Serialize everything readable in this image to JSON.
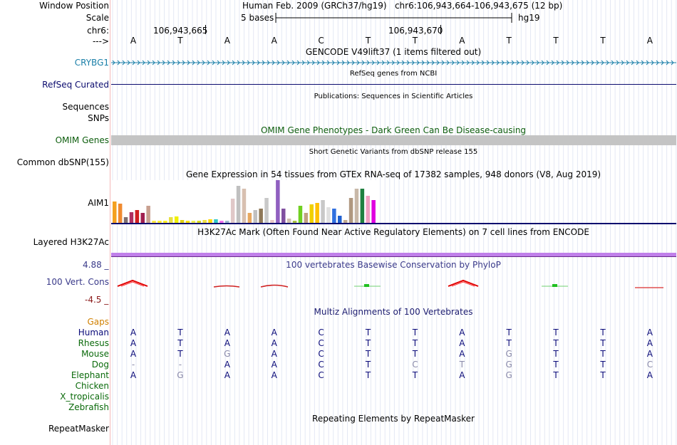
{
  "colors": {
    "gencode": "#1a7fa8",
    "refseq": "#0b0b6e",
    "omim": "#0e5e0e",
    "omim_bar": "#c4c4c4",
    "h3k27ac_bar": "#c080ea",
    "phylop_label": "#3a3a8a",
    "phylop_min": "#8b1a1a",
    "gaps": "#d08000",
    "multiz_label": "#1c1c70",
    "human": "#0b0b7a",
    "other_species": "#0b6a0b",
    "base_match": "#0b0b7a",
    "base_mismatch": "#8a8aaa"
  },
  "header": {
    "window_position_label": "Window Position",
    "window_position_value": "Human Feb. 2009 (GRCh37/hg19)   chr6:106,943,664-106,943,675 (12 bp)",
    "scale_label": "Scale",
    "scale_bases": "5 bases",
    "scale_assembly": "hg19",
    "chrom_label": "chr6:",
    "coord_1": "106,943,665",
    "coord_2": "106,943,670",
    "strand_label": "--->",
    "bases": [
      "A",
      "T",
      "A",
      "A",
      "C",
      "T",
      "T",
      "A",
      "T",
      "T",
      "T",
      "A"
    ]
  },
  "tracks": {
    "gencode": {
      "title": "GENCODE V49lift37 (1 items filtered out)",
      "label": "CRYBG1"
    },
    "refseq": {
      "title": "RefSeq genes from NCBI",
      "label": "RefSeq Curated"
    },
    "publications": {
      "title": "Publications: Sequences in Scientific Articles",
      "label": "Sequences"
    },
    "snps": {
      "label": "SNPs"
    },
    "omim": {
      "title": "OMIM Gene Phenotypes - Dark Green Can Be Disease-causing",
      "label": "OMIM Genes"
    },
    "dbsnp": {
      "title": "Short Genetic Variants from dbSNP release 155",
      "label": "Common dbSNP(155)"
    },
    "gtex": {
      "title": "Gene Expression in 54 tissues from GTEx RNA-seq of 17382 samples, 948 donors (V8, Aug 2019)",
      "label": "AIM1"
    },
    "h3k27ac": {
      "title": "H3K27Ac Mark (Often Found Near Active Regulatory Elements) on 7 cell lines from ENCODE",
      "label": "Layered H3K27Ac"
    },
    "phylop": {
      "title": "100 vertebrates Basewise Conservation by PhyloP",
      "label": "100 Vert. Cons",
      "max": "4.88 _",
      "min": "-4.5 _"
    },
    "multiz": {
      "title": "Multiz Alignments of 100 Vertebrates",
      "gaps_label": "Gaps",
      "species": [
        {
          "name": "Human",
          "bases": [
            "A",
            "T",
            "A",
            "A",
            "C",
            "T",
            "T",
            "A",
            "T",
            "T",
            "T",
            "A"
          ]
        },
        {
          "name": "Rhesus",
          "bases": [
            "A",
            "T",
            "A",
            "A",
            "C",
            "T",
            "T",
            "A",
            "T",
            "T",
            "T",
            "A"
          ]
        },
        {
          "name": "Mouse",
          "bases": [
            "A",
            "T",
            "G",
            "A",
            "C",
            "T",
            "T",
            "A",
            "G",
            "T",
            "T",
            "A"
          ]
        },
        {
          "name": "Dog",
          "bases": [
            "-",
            "-",
            "A",
            "A",
            "C",
            "T",
            "C",
            "T",
            "G",
            "T",
            "T",
            "C"
          ]
        },
        {
          "name": "Elephant",
          "bases": [
            "A",
            "G",
            "A",
            "A",
            "C",
            "T",
            "T",
            "A",
            "G",
            "T",
            "T",
            "A"
          ]
        },
        {
          "name": "Chicken",
          "bases": []
        },
        {
          "name": "X_tropicalis",
          "bases": []
        },
        {
          "name": "Zebrafish",
          "bases": []
        }
      ]
    },
    "repeatmasker": {
      "title": "Repeating Elements by RepeatMasker",
      "label": "RepeatMasker"
    }
  }
}
